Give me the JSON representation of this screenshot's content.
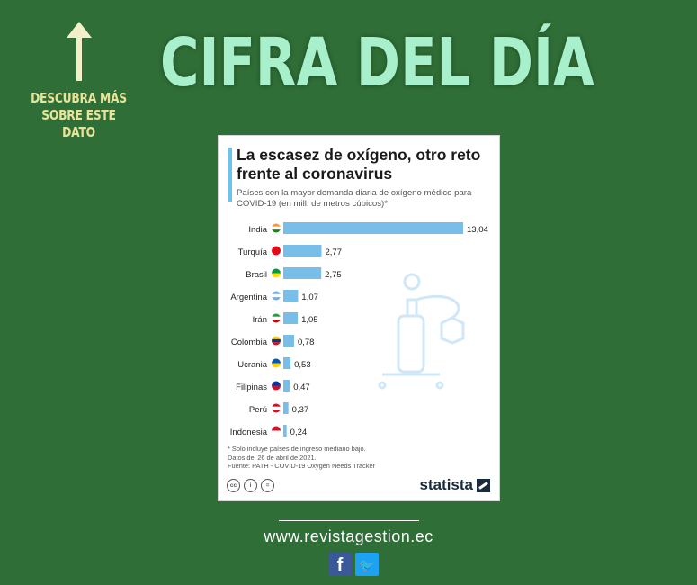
{
  "headline": "CIFRA DEL DÍA",
  "side_text": "DESCUBRA MÁS SOBRE ESTE DATO",
  "card": {
    "title": "La escasez de oxígeno, otro reto frente al coronavirus",
    "subtitle": "Países con la mayor demanda diaria de oxígeno médico para COVID-19 (en mill. de metros cúbicos)*",
    "footnote_lines": [
      "* Solo incluye países de ingreso mediano bajo.",
      "Datos del 26 de abril de 2021.",
      "Fuente: PATH - COVID-19 Oxygen Needs Tracker"
    ],
    "cc_icons": [
      "cc-icon",
      "person-icon",
      "equals-icon"
    ],
    "brand": "statista"
  },
  "website": "www.revistagestion.ec",
  "social": [
    "facebook-icon",
    "twitter-icon"
  ],
  "colors": {
    "background": "#2f6e36",
    "headline": "#a8f0cc",
    "side_text": "#e9e39a",
    "bar": "#79bde9",
    "accent": "#6dc3ef"
  },
  "chart_data": {
    "type": "bar",
    "orientation": "horizontal",
    "categories": [
      "India",
      "Turquía",
      "Brasil",
      "Argentina",
      "Irán",
      "Colombia",
      "Ucrania",
      "Filipinas",
      "Perú",
      "Indonesia"
    ],
    "values": [
      13.04,
      2.77,
      2.75,
      1.07,
      1.05,
      0.78,
      0.53,
      0.47,
      0.37,
      0.24
    ],
    "value_labels": [
      "13,04",
      "2,77",
      "2,75",
      "1,07",
      "1,05",
      "0,78",
      "0,53",
      "0,47",
      "0,37",
      "0,24"
    ],
    "flags": [
      "india-flag-icon",
      "turkey-flag-icon",
      "brazil-flag-icon",
      "argentina-flag-icon",
      "iran-flag-icon",
      "colombia-flag-icon",
      "ukraine-flag-icon",
      "philippines-flag-icon",
      "peru-flag-icon",
      "indonesia-flag-icon"
    ],
    "xlim": [
      0,
      13.04
    ]
  }
}
